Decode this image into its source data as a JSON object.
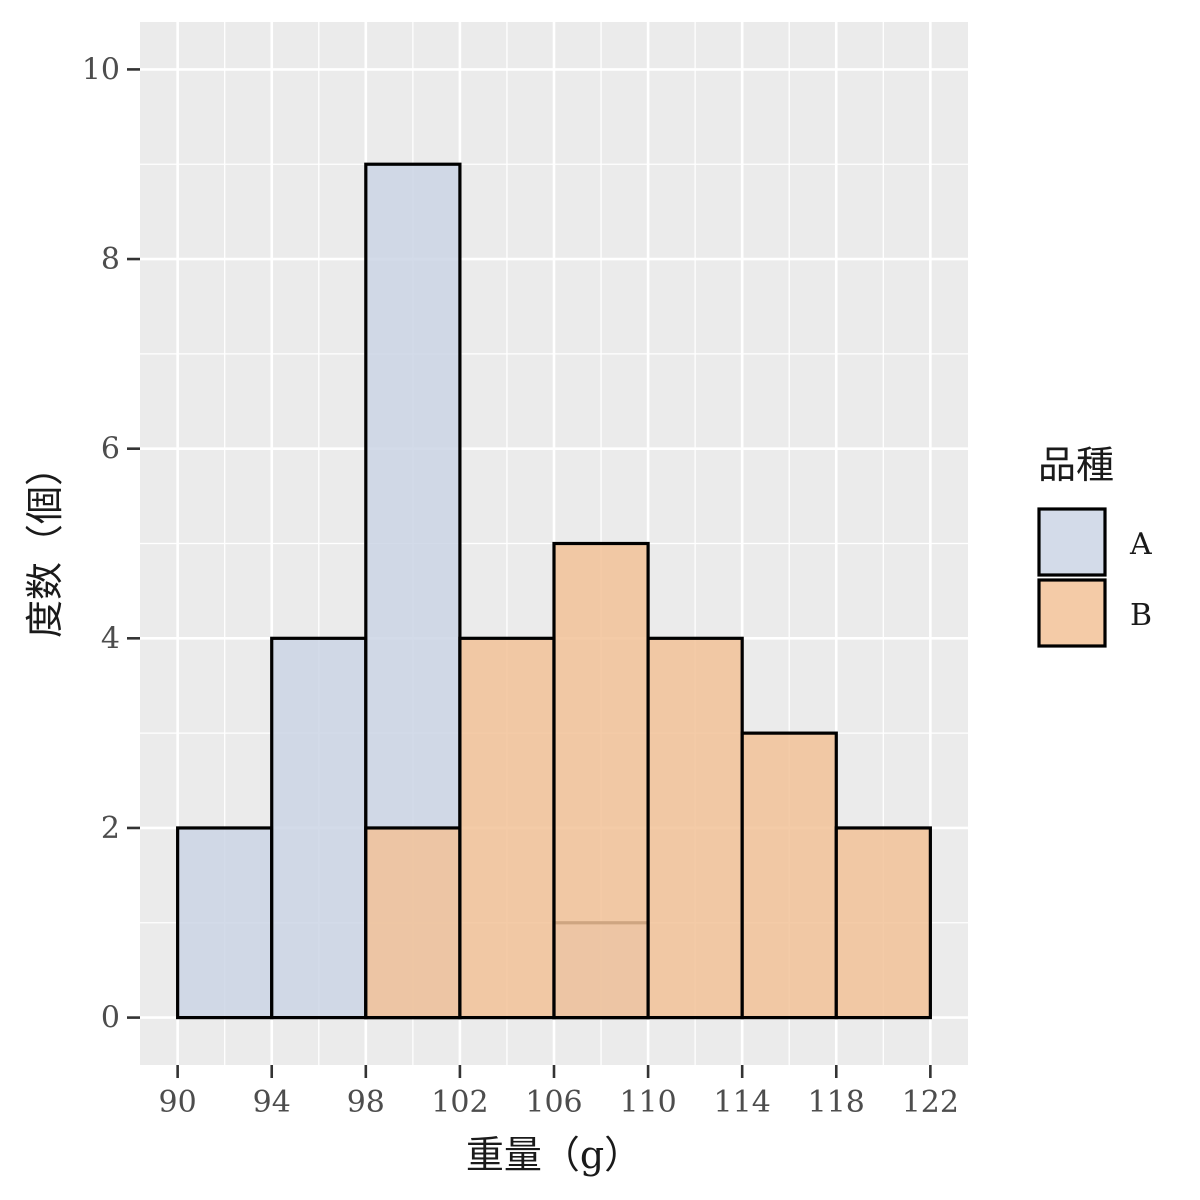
{
  "chart_data": {
    "type": "bar",
    "subtype": "overlapping-histogram",
    "bin_edges": [
      90,
      94,
      98,
      102,
      106,
      110,
      114,
      118,
      122
    ],
    "x_ticks": [
      90,
      94,
      98,
      102,
      106,
      110,
      114,
      118,
      122
    ],
    "y_ticks": [
      0,
      2,
      4,
      6,
      8,
      10
    ],
    "xlabel": "重量（g）",
    "ylabel": "度数（個）",
    "xlim": [
      88.4,
      123.6
    ],
    "ylim": [
      -0.5,
      10.5
    ],
    "grid": true,
    "legend": {
      "title": "品種",
      "position": "right"
    },
    "series": [
      {
        "name": "A",
        "color": "#cbd5e5",
        "values": [
          2,
          4,
          9,
          0,
          1,
          0,
          0,
          0
        ]
      },
      {
        "name": "B",
        "color": "#f2c298",
        "values": [
          0,
          0,
          2,
          4,
          5,
          4,
          3,
          2
        ]
      }
    ],
    "colors": {
      "panel_background": "#ebebeb",
      "grid": "#ffffff",
      "outline": "#000000"
    }
  }
}
